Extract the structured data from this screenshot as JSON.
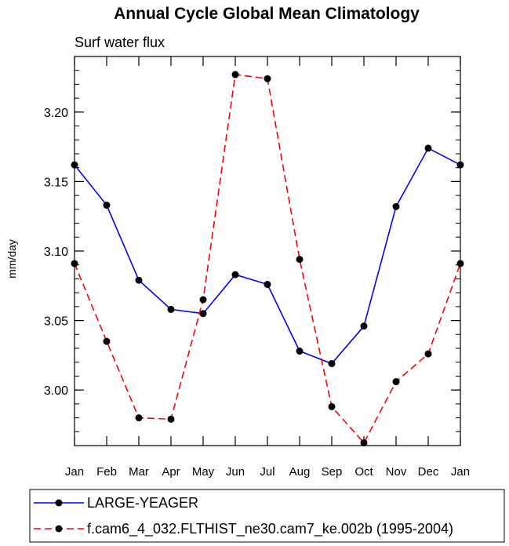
{
  "chart_data": {
    "type": "line",
    "title": "Annual Cycle Global Mean Climatology",
    "subtitle": "Surf water flux",
    "xlabel": "",
    "ylabel": "mm/day",
    "categories": [
      "Jan",
      "Feb",
      "Mar",
      "Apr",
      "May",
      "Jun",
      "Jul",
      "Aug",
      "Sep",
      "Oct",
      "Nov",
      "Dec",
      "Jan"
    ],
    "ylim": [
      2.96,
      3.24
    ],
    "yticks": [
      3.0,
      3.05,
      3.1,
      3.15,
      3.2
    ],
    "ytick_labels": [
      "3.00",
      "3.05",
      "3.10",
      "3.15",
      "3.20"
    ],
    "grid": false,
    "legend_position": "bottom",
    "series": [
      {
        "name": "LARGE-YEAGER",
        "color": "#0000ff",
        "dash": "solid",
        "values": [
          3.162,
          3.133,
          3.079,
          3.058,
          3.055,
          3.083,
          3.076,
          3.028,
          3.019,
          3.046,
          3.132,
          3.174,
          3.162
        ]
      },
      {
        "name": "f.cam6_4_032.FLTHIST_ne30.cam7_ke.002b (1995-2004)",
        "color": "#ff0000",
        "dash": "dashed",
        "values": [
          3.091,
          3.035,
          2.98,
          2.979,
          3.065,
          3.227,
          3.224,
          3.094,
          2.988,
          2.962,
          3.006,
          3.026,
          3.091
        ]
      }
    ]
  }
}
